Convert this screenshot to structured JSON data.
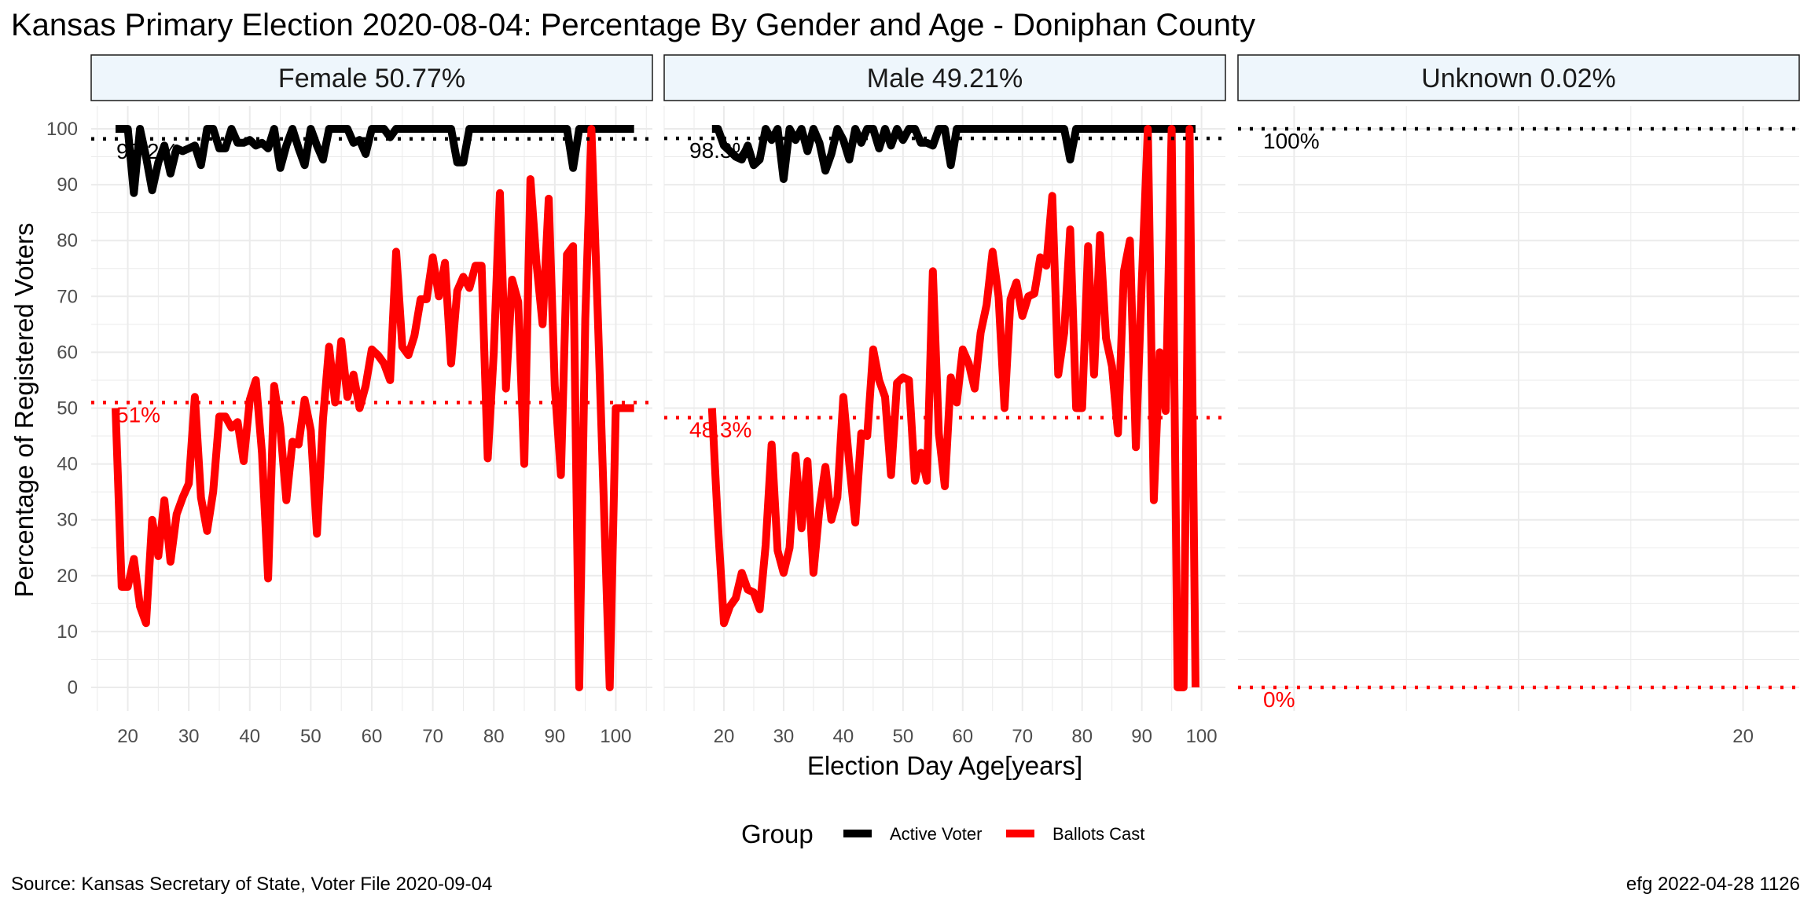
{
  "chart_data": {
    "type": "line",
    "title": "Kansas Primary Election 2020-08-04:  Percentage By Gender and Age - Doniphan County",
    "xlabel": "Election Day Age[years]",
    "ylabel": "Percentage of Registered Voters",
    "ylim": [
      0,
      100
    ],
    "y_ticks": [
      0,
      10,
      20,
      30,
      40,
      50,
      60,
      70,
      80,
      90,
      100
    ],
    "legend": {
      "title": "Group",
      "placement": "bottom",
      "items": [
        {
          "name": "Active Voter",
          "color": "#000000"
        },
        {
          "name": "Ballots Cast",
          "color": "#ff0000"
        }
      ]
    },
    "caption_left": "Source:  Kansas Secretary of State, Voter File  2020-09-04",
    "caption_right": "efg 2022-04-28 1126",
    "panels": [
      {
        "strip": "Female 50.77%",
        "xlim": [
          14,
          106
        ],
        "x_ticks": [
          20,
          30,
          40,
          50,
          60,
          70,
          80,
          90,
          100
        ],
        "show_y_ticks": true,
        "ref_active": {
          "value": 98.2,
          "label": "98.2%"
        },
        "ref_ballots": {
          "value": 51,
          "label": "51%"
        },
        "series": [
          {
            "name": "Active Voter",
            "color": "#000000",
            "x": [
              18,
              19,
              20,
              21,
              22,
              23,
              24,
              25,
              26,
              27,
              28,
              29,
              30,
              31,
              32,
              33,
              34,
              35,
              36,
              37,
              38,
              39,
              40,
              41,
              42,
              43,
              44,
              45,
              46,
              47,
              48,
              49,
              50,
              51,
              52,
              53,
              54,
              55,
              56,
              57,
              58,
              59,
              60,
              61,
              62,
              63,
              64,
              65,
              66,
              67,
              68,
              69,
              70,
              71,
              72,
              73,
              74,
              75,
              76,
              77,
              78,
              79,
              80,
              81,
              82,
              83,
              84,
              85,
              86,
              87,
              88,
              89,
              90,
              91,
              92,
              93,
              94,
              95,
              96,
              97,
              98,
              99,
              100,
              101,
              102,
              103
            ],
            "y": [
              100,
              100,
              100,
              88.5,
              100,
              95,
              89,
              94,
              97,
              92,
              96.5,
              96,
              96.5,
              97,
              93.5,
              100,
              100,
              96.5,
              96.5,
              100,
              97.5,
              97.5,
              98,
              97,
              97.5,
              96.5,
              100,
              93,
              97,
              100,
              96.5,
              93.5,
              100,
              97,
              94.5,
              100,
              100,
              100,
              100,
              97.5,
              98,
              95.5,
              100,
              100,
              100,
              98.5,
              100,
              100,
              100,
              100,
              100,
              100,
              100,
              100,
              100,
              100,
              94,
              94,
              100,
              100,
              100,
              100,
              100,
              100,
              100,
              100,
              100,
              100,
              100,
              100,
              100,
              100,
              100,
              100,
              100,
              93,
              100,
              100,
              100,
              100,
              100,
              100,
              100,
              100,
              100,
              100
            ]
          },
          {
            "name": "Ballots Cast",
            "color": "#ff0000",
            "x": [
              18,
              19,
              20,
              21,
              22,
              23,
              24,
              25,
              26,
              27,
              28,
              29,
              30,
              31,
              32,
              33,
              34,
              35,
              36,
              37,
              38,
              39,
              40,
              41,
              42,
              43,
              44,
              45,
              46,
              47,
              48,
              49,
              50,
              51,
              52,
              53,
              54,
              55,
              56,
              57,
              58,
              59,
              60,
              61,
              62,
              63,
              64,
              65,
              66,
              67,
              68,
              69,
              70,
              71,
              72,
              73,
              74,
              75,
              76,
              77,
              78,
              79,
              80,
              81,
              82,
              83,
              84,
              85,
              86,
              87,
              88,
              89,
              90,
              91,
              92,
              93,
              94,
              95,
              96,
              97,
              98,
              99,
              100,
              101,
              102,
              103
            ],
            "y": [
              50,
              18,
              18,
              23,
              14.5,
              11.5,
              30,
              23.5,
              33.5,
              22.5,
              31,
              34,
              36.5,
              52,
              34,
              28,
              35,
              48.5,
              48.5,
              46.5,
              47.5,
              40.5,
              51.5,
              55,
              42,
              19.5,
              54,
              46.5,
              33.5,
              44,
              43.5,
              51.5,
              46,
              27.5,
              48,
              61,
              51,
              62,
              52,
              56,
              50,
              54,
              60.5,
              59.5,
              58,
              55,
              78,
              61,
              59.5,
              63,
              69.5,
              69.5,
              77,
              70,
              76,
              58,
              71,
              73.5,
              71.5,
              75.5,
              75.5,
              41,
              60,
              88.5,
              53.5,
              73,
              69,
              40,
              91,
              76,
              65,
              87.5,
              54,
              38,
              77.5,
              79,
              0,
              66,
              100,
              68,
              34.5,
              0,
              50,
              50,
              50,
              50
            ]
          }
        ]
      },
      {
        "strip": "Male 49.21%",
        "xlim": [
          10,
          104
        ],
        "x_ticks": [
          20,
          30,
          40,
          50,
          60,
          70,
          80,
          90,
          100
        ],
        "show_y_ticks": false,
        "ref_active": {
          "value": 98.3,
          "label": "98.3%"
        },
        "ref_ballots": {
          "value": 48.3,
          "label": "48.3%"
        },
        "series": [
          {
            "name": "Active Voter",
            "color": "#000000",
            "x": [
              18,
              19,
              20,
              21,
              22,
              23,
              24,
              25,
              26,
              27,
              28,
              29,
              30,
              31,
              32,
              33,
              34,
              35,
              36,
              37,
              38,
              39,
              40,
              41,
              42,
              43,
              44,
              45,
              46,
              47,
              48,
              49,
              50,
              51,
              52,
              53,
              54,
              55,
              56,
              57,
              58,
              59,
              60,
              61,
              62,
              63,
              64,
              65,
              66,
              67,
              68,
              69,
              70,
              71,
              72,
              73,
              74,
              75,
              76,
              77,
              78,
              79,
              80,
              81,
              82,
              83,
              84,
              85,
              86,
              87,
              88,
              89,
              90,
              91,
              92,
              93,
              94,
              95,
              96,
              97,
              98,
              99
            ],
            "y": [
              100,
              100,
              97,
              96,
              95,
              94.5,
              97,
              93.5,
              94.5,
              100,
              98,
              100,
              91,
              100,
              98,
              100,
              96,
              100,
              97.5,
              92.5,
              95.5,
              100,
              98,
              94.5,
              100,
              97.5,
              100,
              100,
              96.5,
              100,
              97,
              100,
              98,
              100,
              100,
              97.5,
              97.5,
              97,
              100,
              100,
              93.5,
              100,
              100,
              100,
              100,
              100,
              100,
              100,
              100,
              100,
              100,
              100,
              100,
              100,
              100,
              100,
              100,
              100,
              100,
              100,
              94.5,
              100,
              100,
              100,
              100,
              100,
              100,
              100,
              100,
              100,
              100,
              100,
              100,
              100,
              100,
              100,
              100,
              100,
              100,
              100,
              100,
              100
            ]
          },
          {
            "name": "Ballots Cast",
            "color": "#ff0000",
            "x": [
              18,
              19,
              20,
              21,
              22,
              23,
              24,
              25,
              26,
              27,
              28,
              29,
              30,
              31,
              32,
              33,
              34,
              35,
              36,
              37,
              38,
              39,
              40,
              41,
              42,
              43,
              44,
              45,
              46,
              47,
              48,
              49,
              50,
              51,
              52,
              53,
              54,
              55,
              56,
              57,
              58,
              59,
              60,
              61,
              62,
              63,
              64,
              65,
              66,
              67,
              68,
              69,
              70,
              71,
              72,
              73,
              74,
              75,
              76,
              77,
              78,
              79,
              80,
              81,
              82,
              83,
              84,
              85,
              86,
              87,
              88,
              89,
              90,
              91,
              92,
              93,
              94,
              95,
              96,
              97,
              98,
              99
            ],
            "y": [
              50,
              29,
              11.5,
              14.5,
              16,
              20.5,
              17.5,
              17,
              14,
              25.5,
              43.5,
              24.5,
              20.5,
              25,
              41.5,
              28.5,
              40.5,
              20.5,
              32,
              39.5,
              30,
              34,
              52,
              40,
              29.5,
              45.5,
              45,
              60.5,
              55,
              52,
              38,
              54.5,
              55.5,
              55,
              37,
              42,
              37,
              74.5,
              45.5,
              36,
              55.5,
              51,
              60.5,
              58,
              53.5,
              63.5,
              68.5,
              78,
              70,
              50,
              69.5,
              72.5,
              66.5,
              70,
              70.5,
              77,
              75.5,
              88,
              56,
              63.5,
              82,
              50,
              50,
              79,
              56,
              81,
              62.5,
              57.5,
              45.5,
              74.5,
              80,
              43,
              73,
              100,
              33.5,
              60,
              49.5,
              100,
              0,
              0,
              100,
              0
            ]
          }
        ]
      },
      {
        "strip": "Unknown 0.02%",
        "xlim": [
          -25,
          25
        ],
        "x_ticks": [
          20
        ],
        "show_y_ticks": false,
        "ref_active": {
          "value": 100,
          "label": "100%"
        },
        "ref_ballots": {
          "value": 0,
          "label": "0%"
        },
        "series": []
      }
    ]
  }
}
